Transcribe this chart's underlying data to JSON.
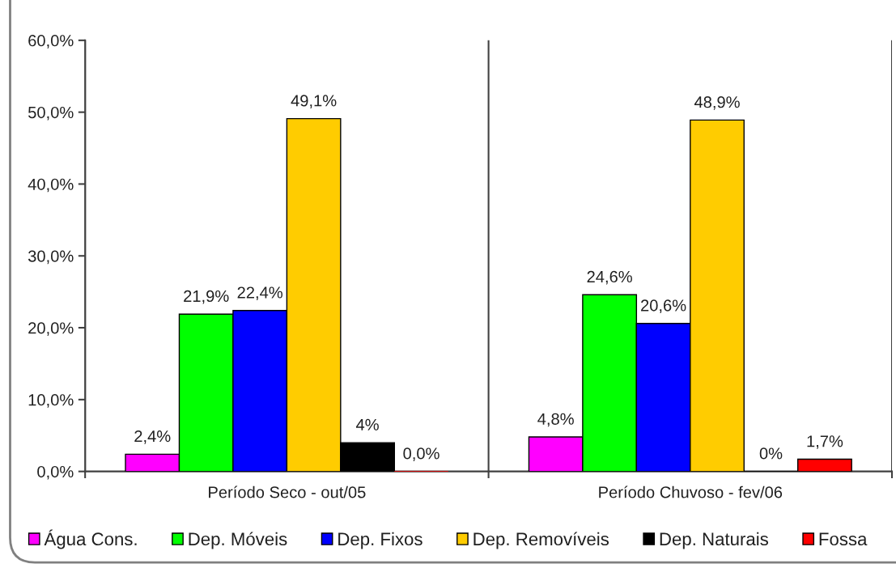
{
  "chart_data": {
    "type": "bar",
    "categories": [
      "Período Seco - out/05",
      "Período Chuvoso - fev/06"
    ],
    "series": [
      {
        "name": "Água Cons.",
        "color": "#ff00ff",
        "values": [
          2.4,
          4.8
        ],
        "value_labels": [
          "2,4%",
          "4,8%"
        ]
      },
      {
        "name": "Dep. Móveis",
        "color": "#00ff00",
        "values": [
          21.9,
          24.6
        ],
        "value_labels": [
          "21,9%",
          "24,6%"
        ]
      },
      {
        "name": "Dep. Fixos",
        "color": "#0000ff",
        "values": [
          22.4,
          20.6
        ],
        "value_labels": [
          "22,4%",
          "20,6%"
        ]
      },
      {
        "name": "Dep. Removíveis",
        "color": "#ffcc00",
        "values": [
          49.1,
          48.9
        ],
        "value_labels": [
          "49,1%",
          "48,9%"
        ]
      },
      {
        "name": "Dep. Naturais",
        "color": "#000000",
        "values": [
          4,
          0
        ],
        "value_labels": [
          "4%",
          "0%"
        ]
      },
      {
        "name": "Fossa",
        "color": "#ff0000",
        "values": [
          0,
          1.7
        ],
        "value_labels": [
          "0,0%",
          "1,7%"
        ]
      }
    ],
    "ylim": [
      0,
      60
    ],
    "yticks": [
      {
        "value": 0,
        "label": "0,0%"
      },
      {
        "value": 10,
        "label": "10,0%"
      },
      {
        "value": 20,
        "label": "20,0%"
      },
      {
        "value": 30,
        "label": "30,0%"
      },
      {
        "value": 40,
        "label": "40,0%"
      },
      {
        "value": 50,
        "label": "50,0%"
      },
      {
        "value": 60,
        "label": "60,0%"
      }
    ],
    "grid": "x",
    "legend": "bottom"
  }
}
